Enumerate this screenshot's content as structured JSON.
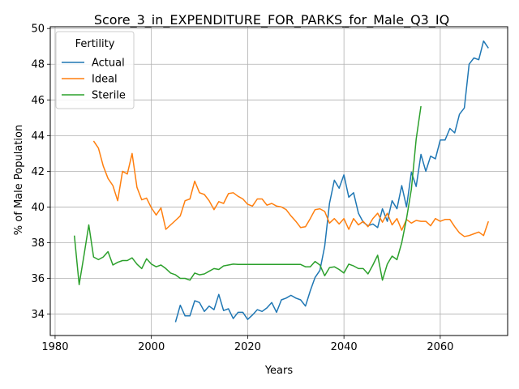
{
  "chart_data": {
    "type": "line",
    "title": "Score_3_in_EXPENDITURE_FOR_PARKS_for_Male_Q3_IQ",
    "xlabel": "Years",
    "ylabel": "% of Male Population",
    "xlim": [
      1979,
      2074
    ],
    "ylim": [
      32.8,
      50.1
    ],
    "xticks": [
      1980,
      2000,
      2020,
      2040,
      2060
    ],
    "yticks": [
      34,
      36,
      38,
      40,
      42,
      44,
      46,
      48,
      50
    ],
    "grid": true,
    "legend": {
      "title": "Fertility",
      "placement": "top-left"
    },
    "series": [
      {
        "name": "Actual",
        "color": "#1f77b4",
        "points": [
          [
            2005,
            33.55
          ],
          [
            2006,
            34.5
          ],
          [
            2007,
            33.9
          ],
          [
            2008,
            33.9
          ],
          [
            2009,
            34.75
          ],
          [
            2010,
            34.65
          ],
          [
            2011,
            34.15
          ],
          [
            2012,
            34.45
          ],
          [
            2013,
            34.25
          ],
          [
            2014,
            35.1
          ],
          [
            2015,
            34.2
          ],
          [
            2016,
            34.3
          ],
          [
            2017,
            33.75
          ],
          [
            2018,
            34.1
          ],
          [
            2019,
            34.1
          ],
          [
            2020,
            33.7
          ],
          [
            2021,
            33.95
          ],
          [
            2022,
            34.25
          ],
          [
            2023,
            34.15
          ],
          [
            2024,
            34.35
          ],
          [
            2025,
            34.65
          ],
          [
            2026,
            34.1
          ],
          [
            2027,
            34.8
          ],
          [
            2028,
            34.9
          ],
          [
            2029,
            35.05
          ],
          [
            2030,
            34.9
          ],
          [
            2031,
            34.8
          ],
          [
            2032,
            34.45
          ],
          [
            2033,
            35.3
          ],
          [
            2034,
            36.05
          ],
          [
            2035,
            36.45
          ],
          [
            2036,
            37.8
          ],
          [
            2037,
            40.2
          ],
          [
            2038,
            41.5
          ],
          [
            2039,
            41.05
          ],
          [
            2040,
            41.8
          ],
          [
            2041,
            40.55
          ],
          [
            2042,
            40.8
          ],
          [
            2043,
            39.65
          ],
          [
            2044,
            39.15
          ],
          [
            2045,
            38.95
          ],
          [
            2046,
            39.05
          ],
          [
            2047,
            38.85
          ],
          [
            2048,
            39.9
          ],
          [
            2049,
            39.2
          ],
          [
            2050,
            40.35
          ],
          [
            2051,
            39.9
          ],
          [
            2052,
            41.2
          ],
          [
            2053,
            40.0
          ],
          [
            2054,
            41.95
          ],
          [
            2055,
            41.15
          ],
          [
            2056,
            42.95
          ],
          [
            2057,
            42.0
          ],
          [
            2058,
            42.85
          ],
          [
            2059,
            42.7
          ],
          [
            2060,
            43.75
          ],
          [
            2061,
            43.75
          ],
          [
            2062,
            44.4
          ],
          [
            2063,
            44.15
          ],
          [
            2064,
            45.2
          ],
          [
            2065,
            45.55
          ],
          [
            2066,
            48.0
          ],
          [
            2067,
            48.35
          ],
          [
            2068,
            48.25
          ],
          [
            2069,
            49.3
          ],
          [
            2070,
            48.9
          ]
        ]
      },
      {
        "name": "Ideal",
        "color": "#ff7f0e",
        "points": [
          [
            1988,
            43.7
          ],
          [
            1989,
            43.3
          ],
          [
            1990,
            42.3
          ],
          [
            1991,
            41.6
          ],
          [
            1992,
            41.2
          ],
          [
            1993,
            40.35
          ],
          [
            1994,
            42.0
          ],
          [
            1995,
            41.85
          ],
          [
            1996,
            43.0
          ],
          [
            1997,
            41.1
          ],
          [
            1998,
            40.4
          ],
          [
            1999,
            40.5
          ],
          [
            2000,
            39.95
          ],
          [
            2001,
            39.55
          ],
          [
            2002,
            39.95
          ],
          [
            2003,
            38.75
          ],
          [
            2004,
            39.0
          ],
          [
            2005,
            39.25
          ],
          [
            2006,
            39.5
          ],
          [
            2007,
            40.35
          ],
          [
            2008,
            40.45
          ],
          [
            2009,
            41.45
          ],
          [
            2010,
            40.8
          ],
          [
            2011,
            40.7
          ],
          [
            2012,
            40.35
          ],
          [
            2013,
            39.85
          ],
          [
            2014,
            40.3
          ],
          [
            2015,
            40.2
          ],
          [
            2016,
            40.75
          ],
          [
            2017,
            40.8
          ],
          [
            2018,
            40.6
          ],
          [
            2019,
            40.45
          ],
          [
            2020,
            40.15
          ],
          [
            2021,
            40.05
          ],
          [
            2022,
            40.45
          ],
          [
            2023,
            40.45
          ],
          [
            2024,
            40.1
          ],
          [
            2025,
            40.2
          ],
          [
            2026,
            40.05
          ],
          [
            2027,
            40.0
          ],
          [
            2028,
            39.85
          ],
          [
            2029,
            39.5
          ],
          [
            2030,
            39.2
          ],
          [
            2031,
            38.85
          ],
          [
            2032,
            38.9
          ],
          [
            2033,
            39.35
          ],
          [
            2034,
            39.85
          ],
          [
            2035,
            39.9
          ],
          [
            2036,
            39.75
          ],
          [
            2037,
            39.1
          ],
          [
            2038,
            39.35
          ],
          [
            2039,
            39.05
          ],
          [
            2040,
            39.35
          ],
          [
            2041,
            38.75
          ],
          [
            2042,
            39.35
          ],
          [
            2043,
            39.0
          ],
          [
            2044,
            39.2
          ],
          [
            2045,
            38.9
          ],
          [
            2046,
            39.35
          ],
          [
            2047,
            39.65
          ],
          [
            2048,
            39.15
          ],
          [
            2049,
            39.65
          ],
          [
            2050,
            39.0
          ],
          [
            2051,
            39.35
          ],
          [
            2052,
            38.7
          ],
          [
            2053,
            39.3
          ],
          [
            2054,
            39.1
          ],
          [
            2055,
            39.25
          ],
          [
            2056,
            39.2
          ],
          [
            2057,
            39.2
          ],
          [
            2058,
            38.95
          ],
          [
            2059,
            39.35
          ],
          [
            2060,
            39.2
          ],
          [
            2061,
            39.3
          ],
          [
            2062,
            39.3
          ],
          [
            2063,
            38.9
          ],
          [
            2064,
            38.55
          ],
          [
            2065,
            38.35
          ],
          [
            2066,
            38.4
          ],
          [
            2067,
            38.5
          ],
          [
            2068,
            38.6
          ],
          [
            2069,
            38.4
          ],
          [
            2070,
            39.2
          ]
        ]
      },
      {
        "name": "Sterile",
        "color": "#2ca02c",
        "points": [
          [
            1984,
            38.4
          ],
          [
            1985,
            35.65
          ],
          [
            1986,
            37.3
          ],
          [
            1987,
            39.0
          ],
          [
            1988,
            37.2
          ],
          [
            1989,
            37.05
          ],
          [
            1990,
            37.2
          ],
          [
            1991,
            37.5
          ],
          [
            1992,
            36.75
          ],
          [
            1993,
            36.9
          ],
          [
            1994,
            37.0
          ],
          [
            1995,
            37.0
          ],
          [
            1996,
            37.15
          ],
          [
            1997,
            36.8
          ],
          [
            1998,
            36.55
          ],
          [
            1999,
            37.1
          ],
          [
            2000,
            36.8
          ],
          [
            2001,
            36.65
          ],
          [
            2002,
            36.75
          ],
          [
            2003,
            36.55
          ],
          [
            2004,
            36.3
          ],
          [
            2005,
            36.2
          ],
          [
            2006,
            36.0
          ],
          [
            2007,
            36.0
          ],
          [
            2008,
            35.9
          ],
          [
            2009,
            36.3
          ],
          [
            2010,
            36.2
          ],
          [
            2011,
            36.25
          ],
          [
            2012,
            36.4
          ],
          [
            2013,
            36.55
          ],
          [
            2014,
            36.5
          ],
          [
            2015,
            36.7
          ],
          [
            2016,
            36.75
          ],
          [
            2017,
            36.8
          ],
          [
            2018,
            36.78
          ],
          [
            2019,
            36.78
          ],
          [
            2020,
            36.78
          ],
          [
            2021,
            36.78
          ],
          [
            2022,
            36.78
          ],
          [
            2023,
            36.78
          ],
          [
            2024,
            36.78
          ],
          [
            2025,
            36.78
          ],
          [
            2026,
            36.78
          ],
          [
            2027,
            36.78
          ],
          [
            2028,
            36.78
          ],
          [
            2029,
            36.78
          ],
          [
            2030,
            36.78
          ],
          [
            2031,
            36.78
          ],
          [
            2032,
            36.65
          ],
          [
            2033,
            36.65
          ],
          [
            2034,
            36.95
          ],
          [
            2035,
            36.75
          ],
          [
            2036,
            36.15
          ],
          [
            2037,
            36.6
          ],
          [
            2038,
            36.65
          ],
          [
            2039,
            36.5
          ],
          [
            2040,
            36.3
          ],
          [
            2041,
            36.8
          ],
          [
            2042,
            36.7
          ],
          [
            2043,
            36.55
          ],
          [
            2044,
            36.55
          ],
          [
            2045,
            36.25
          ],
          [
            2046,
            36.75
          ],
          [
            2047,
            37.3
          ],
          [
            2048,
            35.9
          ],
          [
            2049,
            36.8
          ],
          [
            2050,
            37.25
          ],
          [
            2051,
            37.05
          ],
          [
            2052,
            38.0
          ],
          [
            2053,
            39.35
          ],
          [
            2054,
            41.0
          ],
          [
            2055,
            43.8
          ],
          [
            2056,
            45.65
          ]
        ]
      }
    ]
  }
}
